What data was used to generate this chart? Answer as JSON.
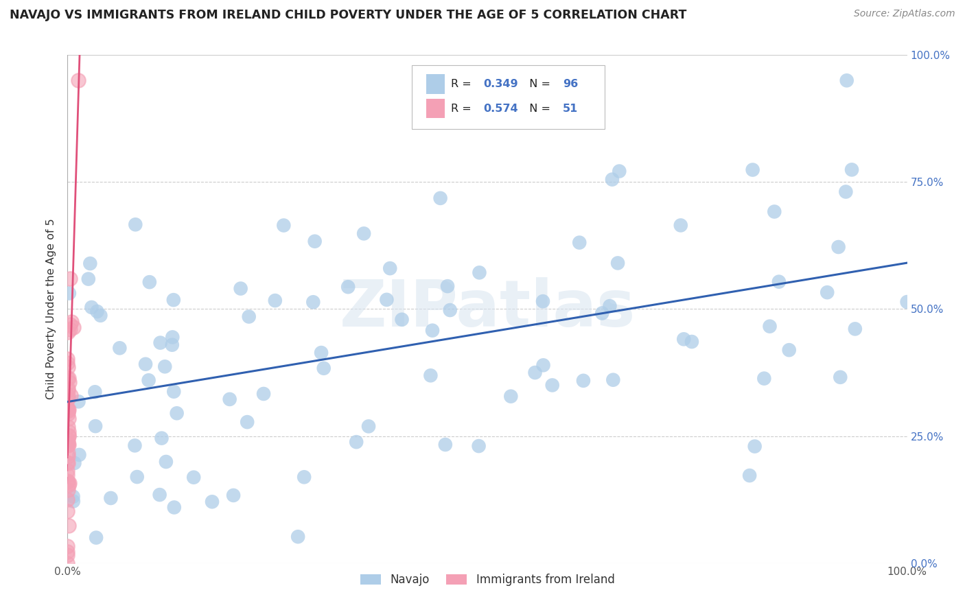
{
  "title": "NAVAJO VS IMMIGRANTS FROM IRELAND CHILD POVERTY UNDER THE AGE OF 5 CORRELATION CHART",
  "source": "Source: ZipAtlas.com",
  "ylabel": "Child Poverty Under the Age of 5",
  "xlim": [
    0.0,
    1.0
  ],
  "ylim": [
    0.0,
    1.0
  ],
  "ytick_labels": [
    "0.0%",
    "25.0%",
    "50.0%",
    "75.0%",
    "100.0%"
  ],
  "ytick_vals": [
    0.0,
    0.25,
    0.5,
    0.75,
    1.0
  ],
  "navajo_R": 0.349,
  "navajo_N": 96,
  "ireland_R": 0.574,
  "ireland_N": 51,
  "navajo_color": "#aecde8",
  "ireland_color": "#f4a0b5",
  "navajo_line_color": "#3060b0",
  "ireland_line_color": "#e0507a",
  "background_color": "#ffffff",
  "grid_color": "#cccccc",
  "navajo_seed": 12,
  "ireland_seed": 5
}
